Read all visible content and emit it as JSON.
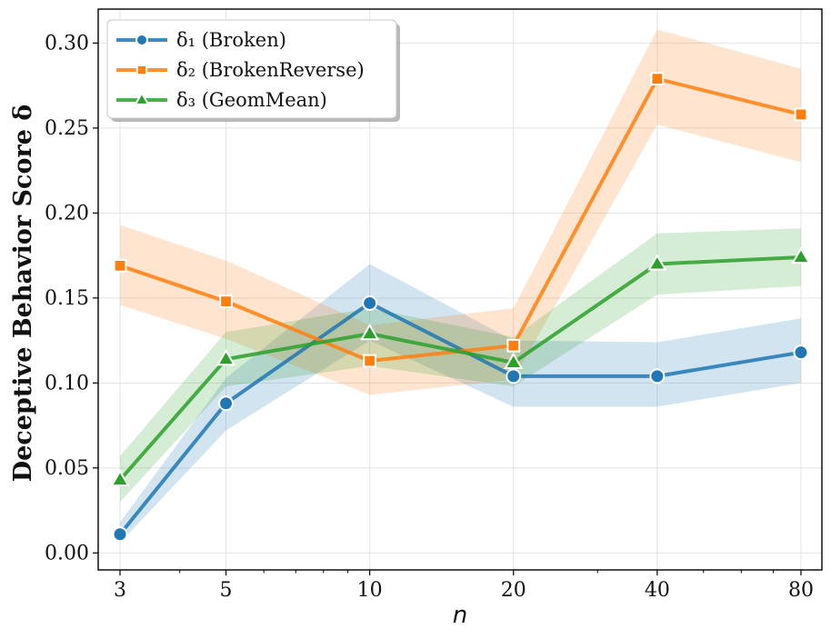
{
  "chart_data": {
    "type": "line",
    "title": "",
    "xlabel": "n",
    "ylabel": "Deceptive Behavior Score δ",
    "x_scale": "log",
    "x": [
      3,
      5,
      10,
      20,
      40,
      80
    ],
    "x_tick_labels": [
      "3",
      "5",
      "10",
      "20",
      "40",
      "80"
    ],
    "ylim": [
      -0.01,
      0.32
    ],
    "y_ticks": [
      0.0,
      0.05,
      0.1,
      0.15,
      0.2,
      0.25,
      0.3
    ],
    "y_tick_labels": [
      "0.00",
      "0.05",
      "0.10",
      "0.15",
      "0.20",
      "0.25",
      "0.30"
    ],
    "grid": true,
    "legend_position": "top-left",
    "series": [
      {
        "name": "δ₁ (Broken)",
        "color": "#1f77b4",
        "marker": "circle",
        "values": [
          0.011,
          0.088,
          0.147,
          0.104,
          0.104,
          0.118
        ],
        "lower": [
          0.006,
          0.072,
          0.125,
          0.086,
          0.086,
          0.1
        ],
        "upper": [
          0.018,
          0.103,
          0.17,
          0.125,
          0.124,
          0.138
        ]
      },
      {
        "name": "δ₂ (BrokenReverse)",
        "color": "#ff7f0e",
        "marker": "square",
        "values": [
          0.169,
          0.148,
          0.113,
          0.122,
          0.279,
          0.258
        ],
        "lower": [
          0.146,
          0.126,
          0.093,
          0.102,
          0.252,
          0.23
        ],
        "upper": [
          0.193,
          0.172,
          0.134,
          0.144,
          0.308,
          0.285
        ]
      },
      {
        "name": "δ₃ (GeomMean)",
        "color": "#2ca02c",
        "marker": "triangle",
        "values": [
          0.043,
          0.114,
          0.129,
          0.112,
          0.17,
          0.174
        ],
        "lower": [
          0.03,
          0.098,
          0.11,
          0.098,
          0.152,
          0.157
        ],
        "upper": [
          0.057,
          0.13,
          0.144,
          0.127,
          0.188,
          0.191
        ]
      }
    ]
  }
}
